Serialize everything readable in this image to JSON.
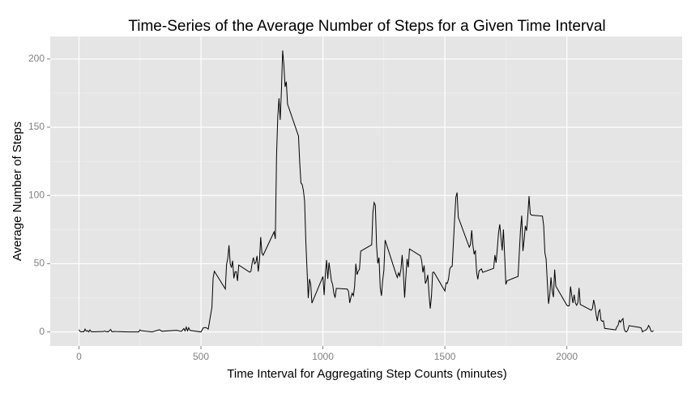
{
  "chart_data": {
    "type": "line",
    "title": "Time-Series of the Average Number of Steps for a Given Time Interval",
    "x_label": "Time Interval for Aggregating Step Counts (minutes)",
    "y_label": "Average Number of Steps",
    "x": [
      0,
      5,
      10,
      15,
      20,
      25,
      30,
      35,
      40,
      45,
      50,
      55,
      100,
      105,
      110,
      115,
      120,
      125,
      130,
      135,
      140,
      145,
      150,
      200,
      230,
      245,
      250,
      255,
      300,
      330,
      340,
      400,
      420,
      430,
      435,
      440,
      445,
      450,
      455,
      500,
      510,
      520,
      530,
      545,
      550,
      555,
      600,
      605,
      610,
      615,
      620,
      625,
      630,
      635,
      640,
      645,
      650,
      655,
      700,
      705,
      710,
      715,
      720,
      725,
      730,
      735,
      740,
      745,
      750,
      755,
      800,
      805,
      810,
      815,
      820,
      825,
      830,
      835,
      840,
      845,
      850,
      855,
      900,
      905,
      910,
      915,
      920,
      925,
      930,
      935,
      940,
      945,
      950,
      955,
      1000,
      1005,
      1010,
      1015,
      1020,
      1025,
      1030,
      1035,
      1040,
      1045,
      1050,
      1055,
      1100,
      1105,
      1110,
      1115,
      1120,
      1125,
      1130,
      1135,
      1140,
      1145,
      1150,
      1155,
      1200,
      1205,
      1210,
      1215,
      1220,
      1225,
      1230,
      1235,
      1240,
      1245,
      1250,
      1255,
      1300,
      1305,
      1310,
      1315,
      1320,
      1325,
      1330,
      1335,
      1340,
      1345,
      1350,
      1355,
      1400,
      1405,
      1410,
      1415,
      1420,
      1425,
      1430,
      1435,
      1440,
      1445,
      1450,
      1455,
      1500,
      1505,
      1510,
      1515,
      1520,
      1525,
      1530,
      1535,
      1540,
      1545,
      1550,
      1555,
      1600,
      1605,
      1610,
      1615,
      1620,
      1625,
      1630,
      1635,
      1640,
      1645,
      1650,
      1655,
      1700,
      1705,
      1710,
      1715,
      1720,
      1725,
      1730,
      1735,
      1740,
      1745,
      1750,
      1755,
      1800,
      1805,
      1810,
      1815,
      1820,
      1825,
      1830,
      1835,
      1840,
      1845,
      1850,
      1855,
      1900,
      1905,
      1910,
      1915,
      1920,
      1925,
      1930,
      1935,
      1940,
      1945,
      1950,
      1955,
      2000,
      2005,
      2010,
      2015,
      2020,
      2025,
      2030,
      2035,
      2040,
      2045,
      2050,
      2055,
      2100,
      2105,
      2110,
      2115,
      2120,
      2125,
      2130,
      2135,
      2140,
      2145,
      2150,
      2155,
      2200,
      2205,
      2210,
      2215,
      2220,
      2225,
      2230,
      2235,
      2240,
      2245,
      2250,
      2255,
      2300,
      2305,
      2310,
      2315,
      2320,
      2325,
      2330,
      2335,
      2340,
      2345,
      2350,
      2355
    ],
    "series": [
      {
        "color": "#000000",
        "values": [
          1.7,
          0.3,
          0.1,
          0.2,
          0.1,
          2.1,
          0.5,
          0.9,
          0,
          1.5,
          0.3,
          0.1,
          0.3,
          0.7,
          0.2,
          0.3,
          0,
          1.1,
          1.8,
          0.2,
          0.2,
          0.4,
          0.3,
          0,
          0,
          0,
          1.5,
          0.9,
          0,
          1.6,
          0.5,
          1.2,
          0.4,
          2.5,
          0.7,
          3.5,
          0.8,
          3.1,
          1.1,
          0,
          3,
          3.3,
          2.1,
          18,
          39.5,
          44.5,
          31.5,
          49.3,
          53.8,
          63.5,
          50,
          47.1,
          52.2,
          39.3,
          44,
          44.2,
          37.4,
          49,
          43.8,
          44.4,
          50.5,
          54.5,
          49.9,
          51,
          55.7,
          44.3,
          52.3,
          69.5,
          57.8,
          56.2,
          73.4,
          68.2,
          129.4,
          157.5,
          171.2,
          155.4,
          177.3,
          206.2,
          195.9,
          179.6,
          183.4,
          167,
          143.5,
          124,
          109.1,
          108.1,
          103.7,
          95.9,
          66.2,
          45.2,
          24.8,
          38.8,
          35,
          21.1,
          40.6,
          27,
          42.4,
          52.7,
          38.9,
          50.8,
          44.3,
          37.4,
          34.7,
          28.3,
          25.1,
          31.9,
          31.4,
          29.7,
          21.3,
          25.5,
          28.4,
          26.5,
          33.4,
          50,
          42,
          44.6,
          46,
          59.2,
          63.9,
          87.7,
          94.8,
          92.8,
          63.4,
          50.2,
          54.5,
          32.4,
          26.5,
          37.7,
          45.1,
          67.3,
          42.3,
          39.9,
          43.3,
          41,
          46.2,
          56.4,
          42.8,
          25.1,
          40,
          53.5,
          47.3,
          60.8,
          55.8,
          52,
          43.6,
          48.7,
          35.5,
          37.5,
          41.8,
          27.5,
          17.1,
          26.1,
          43.6,
          43.8,
          30,
          36.1,
          35.5,
          38.8,
          46,
          47.8,
          48.1,
          65.3,
          82.9,
          98.7,
          102.1,
          84,
          62.1,
          64.1,
          74.5,
          63.2,
          56.9,
          59.8,
          43.9,
          38.6,
          44.7,
          45.5,
          46.2,
          43.7,
          46.6,
          56.3,
          50.7,
          61.2,
          72.7,
          78.9,
          68.9,
          59.7,
          75.1,
          56.5,
          34.8,
          37.5,
          40.7,
          58,
          74.7,
          85.3,
          59.3,
          67.8,
          77.7,
          74.2,
          85.3,
          99.5,
          86.6,
          85.6,
          84.9,
          77.8,
          58,
          53.4,
          36.3,
          20.7,
          27.4,
          40,
          30.2,
          25.5,
          45.7,
          33.5,
          19.6,
          19,
          19.3,
          33.3,
          26.8,
          21.2,
          27.3,
          21.3,
          19.5,
          21.3,
          32.3,
          20.2,
          15.9,
          17.2,
          23.5,
          19.2,
          12.5,
          8,
          14.7,
          16.3,
          8.7,
          7.8,
          8.1,
          2.6,
          1.5,
          3.7,
          4.8,
          8.5,
          7.1,
          8.7,
          9.8,
          2.2,
          0.3,
          0.1,
          1.6,
          4.6,
          3.3,
          2.8,
          0,
          0.8,
          1,
          1.6,
          2.6,
          4.7,
          3.3,
          0.6,
          0.2,
          1.1
        ]
      }
    ],
    "xlim": [
      -117.75,
      2472.75
    ],
    "ylim": [
      -10.3,
      216.5
    ],
    "xticks": [
      0,
      500,
      1000,
      1500,
      2000
    ],
    "yticks": [
      0,
      50,
      100,
      150,
      200
    ],
    "grid": true
  }
}
